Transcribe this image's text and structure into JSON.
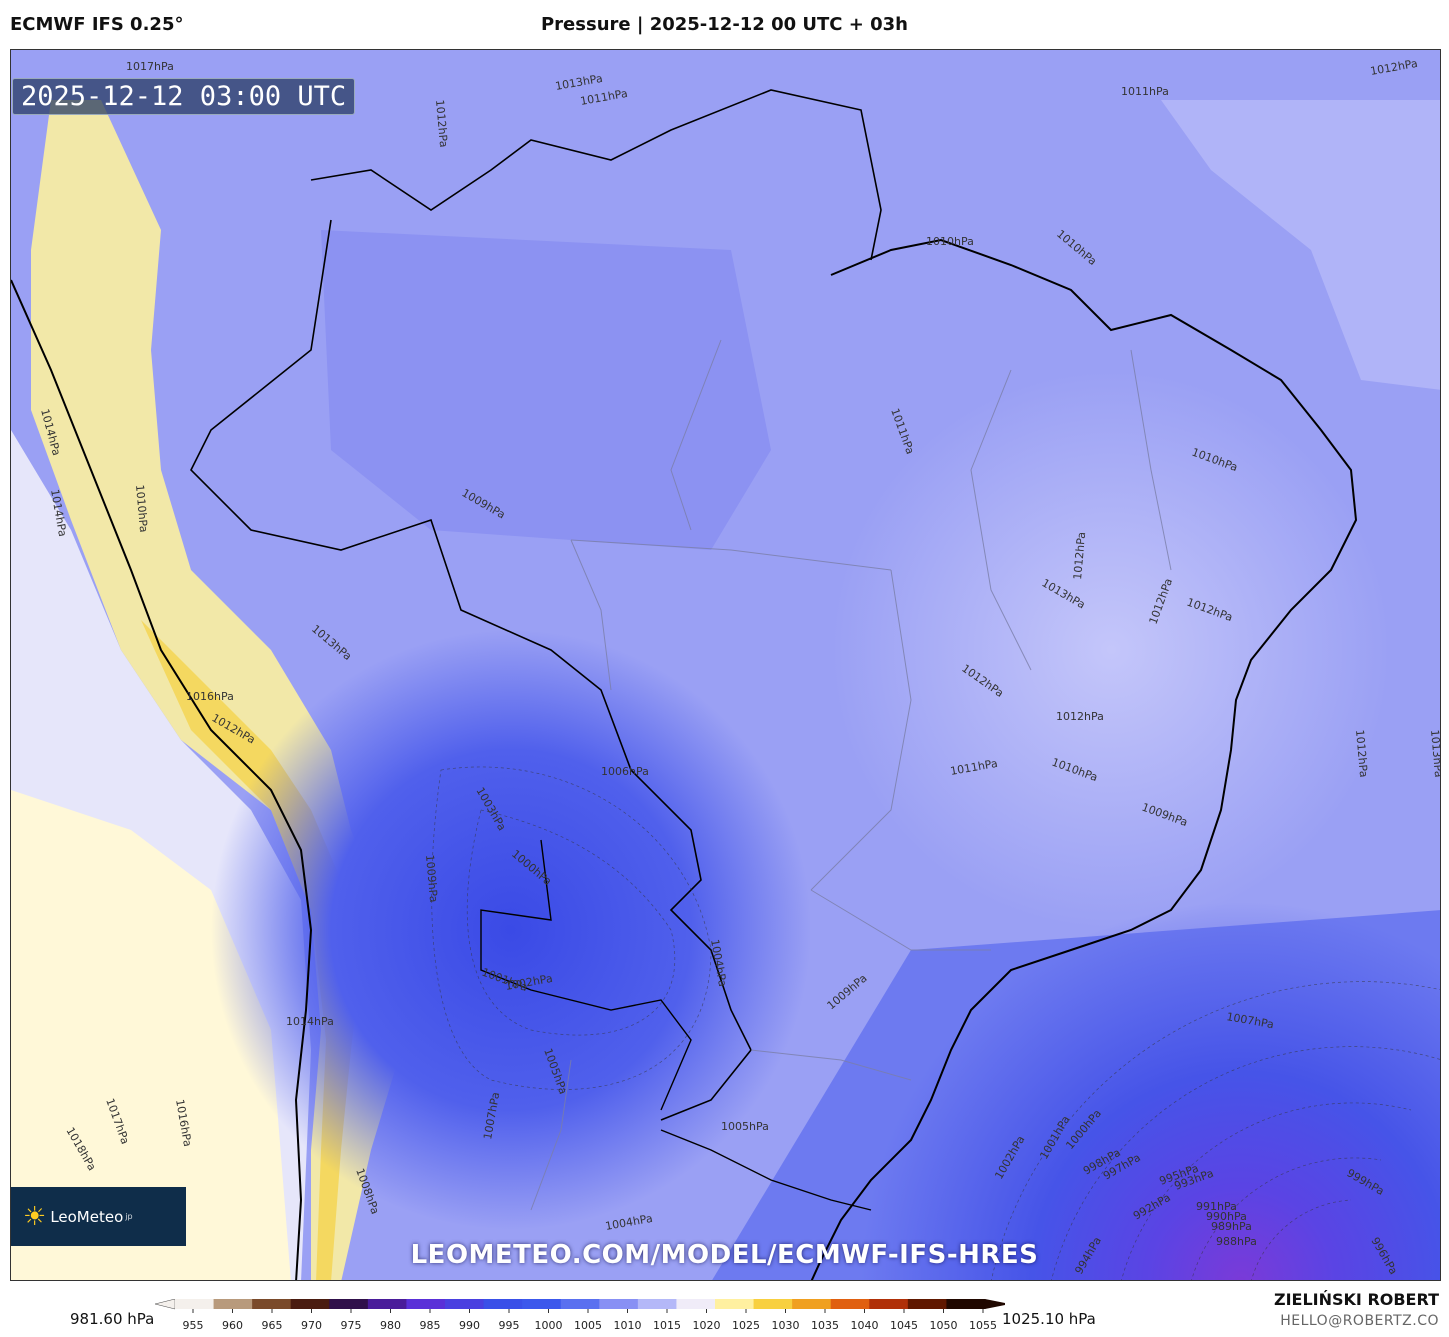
{
  "header": {
    "model": "ECMWF IFS 0.25°",
    "title": "Pressure | 2025-12-12 00 UTC + 03h"
  },
  "map": {
    "valid_time": "2025-12-12 03:00 UTC",
    "watermark": "LEOMETEO.COM/MODEL/ECMWF-IFS-HRES",
    "logo_text": "LeoMeteo",
    "logo_suffix": "jp",
    "logo_icon": "sun-icon",
    "isobar_labels": [
      {
        "text": "1017hPa"
      },
      {
        "text": "1013hPa"
      },
      {
        "text": "1011hPa"
      },
      {
        "text": "1012hPa"
      },
      {
        "text": "1011hPa"
      },
      {
        "text": "1012hPa"
      },
      {
        "text": "1010hPa"
      },
      {
        "text": "1010hPa"
      },
      {
        "text": "1011hPa"
      },
      {
        "text": "1009hPa"
      },
      {
        "text": "1010hPa"
      },
      {
        "text": "1014hPa"
      },
      {
        "text": "1014hPa"
      },
      {
        "text": "1010hPa"
      },
      {
        "text": "1012hPa"
      },
      {
        "text": "1013hPa"
      },
      {
        "text": "1012hPa"
      },
      {
        "text": "1012hPa"
      },
      {
        "text": "1012hPa"
      },
      {
        "text": "1016hPa"
      },
      {
        "text": "1013hPa"
      },
      {
        "text": "1012hPa"
      },
      {
        "text": "1006hPa"
      },
      {
        "text": "1012hPa"
      },
      {
        "text": "1011hPa"
      },
      {
        "text": "1010hPa"
      },
      {
        "text": "1009hPa"
      },
      {
        "text": "1012hPa"
      },
      {
        "text": "1013hPa"
      },
      {
        "text": "1003hPa"
      },
      {
        "text": "1000hPa"
      },
      {
        "text": "1009hPa"
      },
      {
        "text": "1001hPa"
      },
      {
        "text": "1002hPa"
      },
      {
        "text": "1004hPa"
      },
      {
        "text": "1009hPa"
      },
      {
        "text": "1007hPa"
      },
      {
        "text": "1014hPa"
      },
      {
        "text": "1005hPa"
      },
      {
        "text": "1005hPa"
      },
      {
        "text": "1016hPa"
      },
      {
        "text": "1017hPa"
      },
      {
        "text": "1018hPa"
      },
      {
        "text": "1007hPa"
      },
      {
        "text": "1008hPa"
      },
      {
        "text": "1004hPa"
      },
      {
        "text": "1002hPa"
      },
      {
        "text": "1001hPa"
      },
      {
        "text": "1000hPa"
      },
      {
        "text": "999hPa"
      },
      {
        "text": "998hPa"
      },
      {
        "text": "997hPa"
      },
      {
        "text": "995hPa"
      },
      {
        "text": "993hPa"
      },
      {
        "text": "992hPa"
      },
      {
        "text": "991hPa"
      },
      {
        "text": "990hPa"
      },
      {
        "text": "989hPa"
      },
      {
        "text": "988hPa"
      },
      {
        "text": "994hPa"
      },
      {
        "text": "996hPa"
      }
    ]
  },
  "colorbar": {
    "min_label": "981.60 hPa",
    "max_label": "1025.10 hPa",
    "ticks": [
      "955",
      "960",
      "965",
      "970",
      "975",
      "980",
      "985",
      "990",
      "995",
      "1000",
      "1005",
      "1010",
      "1015",
      "1020",
      "1025",
      "1030",
      "1035",
      "1040",
      "1045",
      "1050",
      "1055"
    ],
    "colors": [
      "#f4f0ec",
      "#b89a7c",
      "#7a4a2a",
      "#4a1c10",
      "#30104a",
      "#4a1c9a",
      "#5a30d8",
      "#4a40e0",
      "#3a50e8",
      "#3c58ec",
      "#5a70f0",
      "#8890f4",
      "#b4b8f8",
      "#f0ecf8",
      "#fff0a0",
      "#f8d040",
      "#f0a020",
      "#e06010",
      "#b03008",
      "#601800",
      "#200800"
    ]
  },
  "footer": {
    "author": "ZIELIŃSKI ROBERT",
    "email": "HELLO@ROBERTZ.CO"
  }
}
